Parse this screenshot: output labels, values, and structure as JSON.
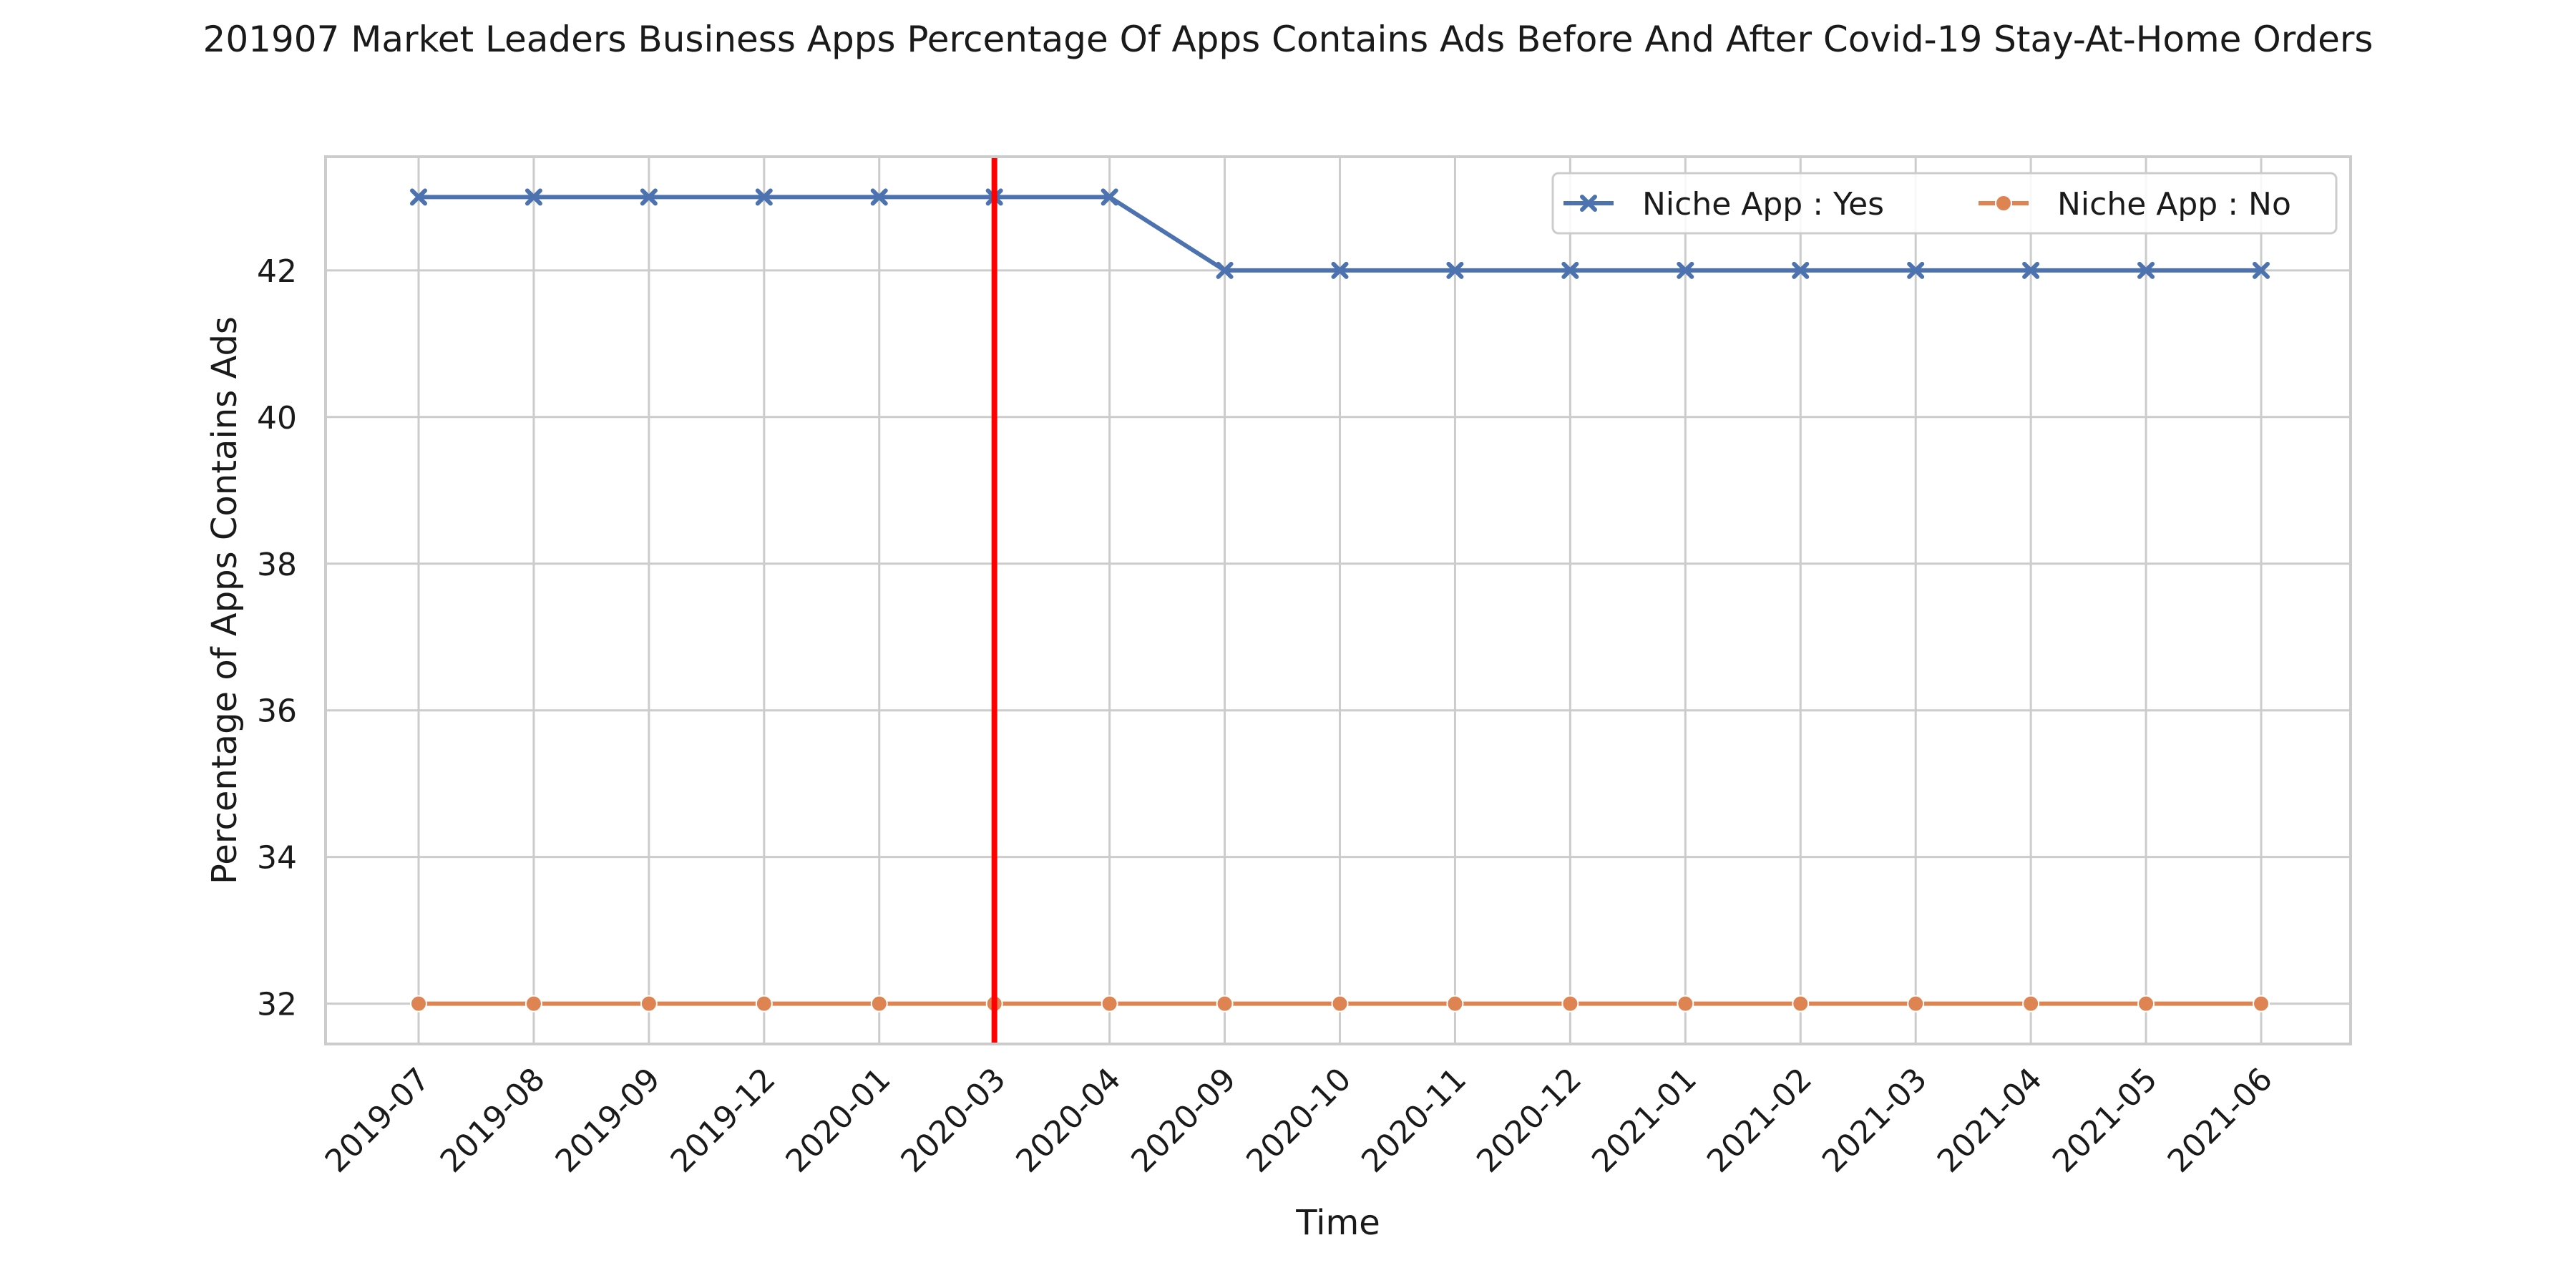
{
  "chart_data": {
    "type": "line",
    "title": "201907 Market Leaders Business Apps Percentage Of Apps Contains Ads Before And After Covid-19 Stay-At-Home Orders",
    "xlabel": "Time",
    "ylabel": "Percentage of Apps Contains Ads",
    "categories": [
      "2019-07",
      "2019-08",
      "2019-09",
      "2019-12",
      "2020-01",
      "2020-03",
      "2020-04",
      "2020-09",
      "2020-10",
      "2020-11",
      "2020-12",
      "2021-01",
      "2021-02",
      "2021-03",
      "2021-04",
      "2021-05",
      "2021-06"
    ],
    "ylim": [
      31.45,
      43.55
    ],
    "yticks": [
      32,
      34,
      36,
      38,
      40,
      42
    ],
    "grid": true,
    "legend_position": "top-right",
    "series": [
      {
        "name": "Niche App : Yes",
        "color": "#4c72b0",
        "marker": "x",
        "values": [
          43,
          43,
          43,
          43,
          43,
          43,
          43,
          42,
          42,
          42,
          42,
          42,
          42,
          42,
          42,
          42,
          42
        ]
      },
      {
        "name": "Niche App : No",
        "color": "#dd8452",
        "marker": "o",
        "values": [
          32,
          32,
          32,
          32,
          32,
          32,
          32,
          32,
          32,
          32,
          32,
          32,
          32,
          32,
          32,
          32,
          32
        ]
      }
    ],
    "vline": {
      "at": "2020-03",
      "color": "#ff0000"
    }
  }
}
